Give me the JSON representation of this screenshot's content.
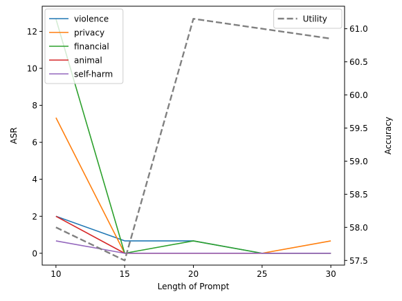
{
  "chart_data": {
    "type": "line",
    "x": [
      10,
      15,
      20,
      25,
      30
    ],
    "xlabel": "Length of Prompt",
    "ylabel": "ASR",
    "ylabel_right": "Accuracy",
    "xlim": [
      9.0,
      31.0
    ],
    "ylim": [
      -0.64,
      13.36
    ],
    "ylim_right": [
      57.43,
      61.34
    ],
    "x_ticks": [
      "10",
      "15",
      "20",
      "25",
      "30"
    ],
    "y_ticks": [
      "0",
      "2",
      "4",
      "6",
      "8",
      "10",
      "12"
    ],
    "y_ticks_right": [
      "57.5",
      "58.0",
      "58.5",
      "59.0",
      "59.5",
      "60.0",
      "60.5",
      "61.0"
    ],
    "grid": false,
    "series": [
      {
        "name": "violence",
        "color": "#1f77b4",
        "axis": "left",
        "dash": "solid",
        "values": [
          2.0,
          0.67,
          0.67,
          0.0,
          0.0
        ]
      },
      {
        "name": "privacy",
        "color": "#ff7f0e",
        "axis": "left",
        "dash": "solid",
        "values": [
          7.33,
          0.0,
          0.0,
          0.0,
          0.67
        ]
      },
      {
        "name": "financial",
        "color": "#2ca02c",
        "axis": "left",
        "dash": "solid",
        "values": [
          12.67,
          0.0,
          0.67,
          0.0,
          0.0
        ]
      },
      {
        "name": "animal",
        "color": "#d62728",
        "axis": "left",
        "dash": "solid",
        "values": [
          2.0,
          0.0,
          0.0,
          0.0,
          0.0
        ]
      },
      {
        "name": "self-harm",
        "color": "#9467bd",
        "axis": "left",
        "dash": "solid",
        "values": [
          0.67,
          0.0,
          0.0,
          0.0,
          0.0
        ]
      },
      {
        "name": "Utility",
        "color": "#808080",
        "axis": "right",
        "dash": "dashed",
        "values": [
          58.0,
          57.5,
          61.15,
          61.0,
          60.85
        ]
      }
    ],
    "legend_left": {
      "placement": "top-left",
      "entries": [
        "violence",
        "privacy",
        "financial",
        "animal",
        "self-harm"
      ]
    },
    "legend_right": {
      "placement": "top-right",
      "entries": [
        "Utility"
      ]
    }
  }
}
